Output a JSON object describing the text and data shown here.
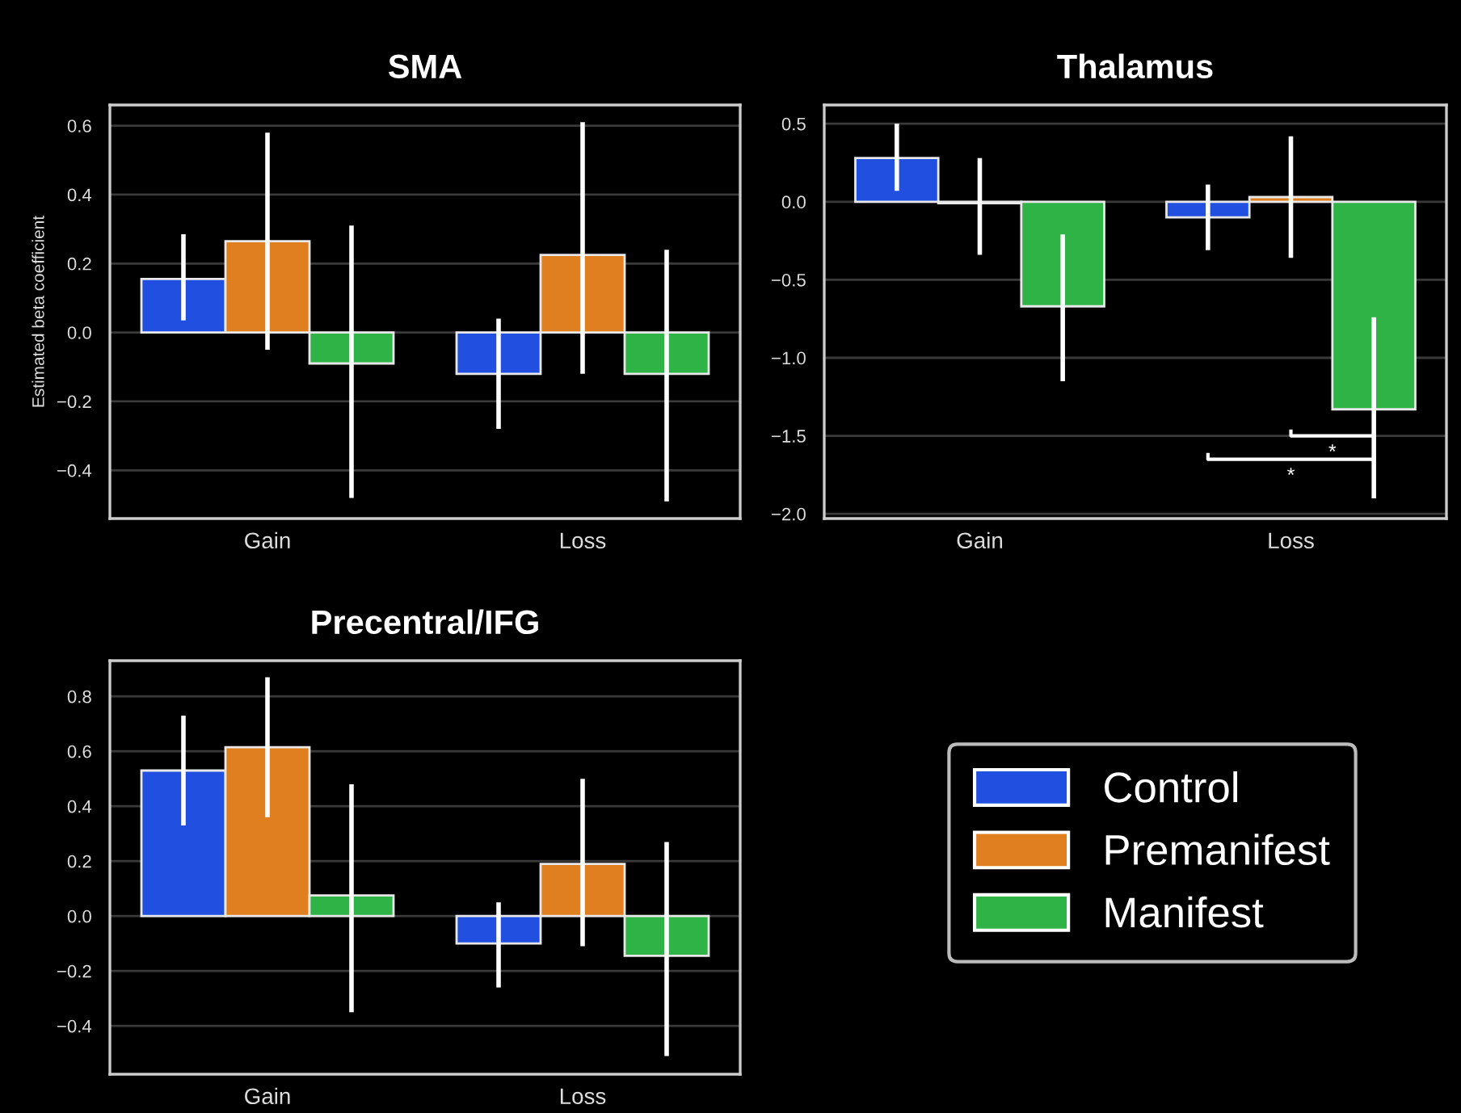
{
  "chart_data": [
    {
      "type": "bar",
      "title": "SMA",
      "ylabel": "Estimated beta coefficient",
      "categories": [
        "Gain",
        "Loss"
      ],
      "ylim": [
        -0.54,
        0.66
      ],
      "yticks": [
        {
          "value": 0.6,
          "label": "0.6"
        },
        {
          "value": 0.4,
          "label": "0.4"
        },
        {
          "value": 0.2,
          "label": "0.2"
        },
        {
          "value": 0.0,
          "label": "0.0"
        },
        {
          "value": -0.2,
          "label": "−0.2"
        },
        {
          "value": -0.4,
          "label": "−0.4"
        }
      ],
      "grid": "y",
      "legend": false,
      "series": [
        {
          "color": "#2150e0",
          "values": [
            0.155,
            -0.12
          ],
          "errors": [
            [
              0.035,
              0.285
            ],
            [
              -0.28,
              0.04
            ]
          ]
        },
        {
          "color": "#e07f20",
          "values": [
            0.265,
            0.225
          ],
          "errors": [
            [
              -0.05,
              0.58
            ],
            [
              -0.12,
              0.61
            ]
          ]
        },
        {
          "color": "#2fb346",
          "values": [
            -0.09,
            -0.12
          ],
          "errors": [
            [
              -0.48,
              0.31
            ],
            [
              -0.49,
              0.24
            ]
          ]
        }
      ]
    },
    {
      "type": "bar",
      "title": "Thalamus",
      "categories": [
        "Gain",
        "Loss"
      ],
      "ylim": [
        -2.03,
        0.62
      ],
      "yticks": [
        {
          "value": 0.5,
          "label": "0.5"
        },
        {
          "value": 0.0,
          "label": "0.0"
        },
        {
          "value": -0.5,
          "label": "−0.5"
        },
        {
          "value": -1.0,
          "label": "−1.0"
        },
        {
          "value": -1.5,
          "label": "−1.5"
        },
        {
          "value": -2.0,
          "label": "−2.0"
        }
      ],
      "grid": "y",
      "legend": false,
      "annotations": [
        "*",
        "*"
      ],
      "series": [
        {
          "color": "#2150e0",
          "values": [
            0.28,
            -0.1
          ],
          "errors": [
            [
              0.07,
              0.5
            ],
            [
              -0.31,
              0.11
            ]
          ]
        },
        {
          "color": "#e07f20",
          "values": [
            -0.01,
            0.03
          ],
          "errors": [
            [
              -0.34,
              0.28
            ],
            [
              -0.36,
              0.42
            ]
          ]
        },
        {
          "color": "#2fb346",
          "values": [
            -0.67,
            -1.33
          ],
          "errors": [
            [
              -1.15,
              -0.21
            ],
            [
              -1.9,
              -0.74
            ]
          ]
        }
      ]
    },
    {
      "type": "bar",
      "title": "Precentral/IFG",
      "categories": [
        "Gain",
        "Loss"
      ],
      "ylim": [
        -0.576,
        0.93
      ],
      "yticks": [
        {
          "value": 0.8,
          "label": "0.8"
        },
        {
          "value": 0.6,
          "label": "0.6"
        },
        {
          "value": 0.4,
          "label": "0.4"
        },
        {
          "value": 0.2,
          "label": "0.2"
        },
        {
          "value": 0.0,
          "label": "0.0"
        },
        {
          "value": -0.2,
          "label": "−0.2"
        },
        {
          "value": -0.4,
          "label": "−0.4"
        }
      ],
      "grid": "y",
      "legend": "right",
      "series": [
        {
          "name": "Control",
          "color": "#2150e0",
          "values": [
            0.53,
            -0.1
          ],
          "errors": [
            [
              0.33,
              0.73
            ],
            [
              -0.26,
              0.05
            ]
          ]
        },
        {
          "name": "Premanifest",
          "color": "#e07f20",
          "values": [
            0.615,
            0.19
          ],
          "errors": [
            [
              0.36,
              0.87
            ],
            [
              -0.11,
              0.5
            ]
          ]
        },
        {
          "name": "Manifest",
          "color": "#2fb346",
          "values": [
            0.075,
            -0.145
          ],
          "errors": [
            [
              -0.35,
              0.48
            ],
            [
              -0.51,
              0.27
            ]
          ]
        }
      ]
    }
  ]
}
